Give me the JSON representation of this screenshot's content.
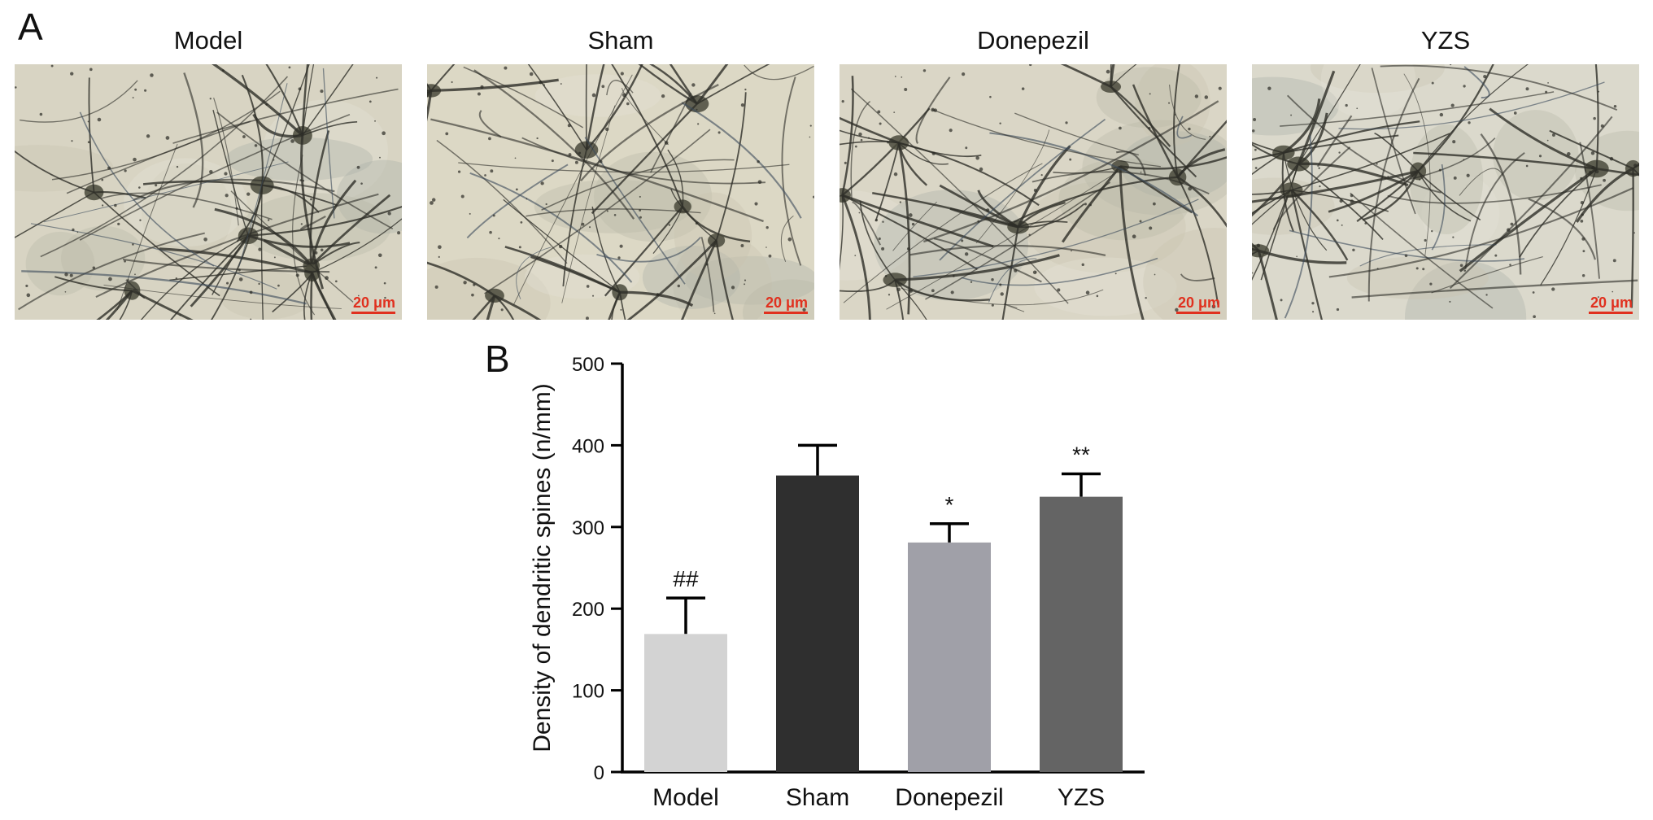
{
  "panel_a": {
    "letter": "A",
    "micrographs": [
      {
        "title": "Model",
        "scale": "20 μm",
        "tone": "#d8d4c3"
      },
      {
        "title": "Sham",
        "scale": "20 μm",
        "tone": "#dcd8c5"
      },
      {
        "title": "Donepezil",
        "scale": "20 μm",
        "tone": "#dad6c6"
      },
      {
        "title": "YZS",
        "scale": "20 μm",
        "tone": "#dbd9cc"
      }
    ]
  },
  "panel_b": {
    "letter": "B"
  },
  "chart_data": {
    "type": "bar",
    "categories": [
      "Model",
      "Sham",
      "Donepezil",
      "YZS"
    ],
    "values": [
      169,
      363,
      281,
      337
    ],
    "errors": [
      44,
      37,
      23,
      28
    ],
    "annotations": [
      "##",
      "",
      "*",
      "**"
    ],
    "colors": [
      "#d3d3d3",
      "#2f2f2f",
      "#a0a0a8",
      "#646464"
    ],
    "ylabel": "Density of dendritic spines (n/mm)",
    "xlabel": "",
    "ylim": [
      0,
      500
    ],
    "yticks": [
      0,
      100,
      200,
      300,
      400,
      500
    ],
    "grid": false
  }
}
